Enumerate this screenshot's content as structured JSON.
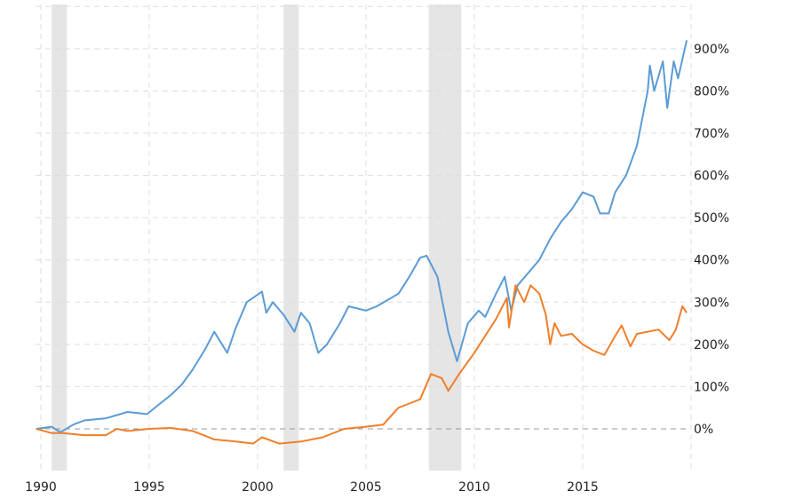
{
  "chart_data": {
    "type": "line",
    "title": "",
    "xlabel": "",
    "ylabel": "",
    "xlim": [
      1989.8,
      2020
    ],
    "ylim": [
      -100,
      1000
    ],
    "x_ticks": [
      1990,
      1995,
      2000,
      2005,
      2010,
      2015
    ],
    "x_tick_labels": [
      "1990",
      "1995",
      "2000",
      "2005",
      "2010",
      "2015"
    ],
    "y_ticks": [
      0,
      100,
      200,
      300,
      400,
      500,
      600,
      700,
      800,
      900
    ],
    "y_tick_labels": [
      "0%",
      "100%",
      "200%",
      "300%",
      "400%",
      "500%",
      "600%",
      "700%",
      "800%",
      "900%"
    ],
    "grid": true,
    "recessions": [
      [
        1990.5,
        1991.2
      ],
      [
        2001.2,
        2001.9
      ],
      [
        2007.9,
        2009.4
      ]
    ],
    "colors": {
      "blue": "#5b9bd5",
      "orange": "#f07f2a",
      "recession": "#e5e5e5",
      "grid": "#dddddd",
      "zero_line": "#999999"
    },
    "series": [
      {
        "color": "#5b9bd5",
        "x": [
          1989.8,
          1990.5,
          1990.9,
          1991.5,
          1992,
          1993,
          1994,
          1994.9,
          1995.5,
          1996,
          1996.5,
          1997,
          1997.6,
          1998,
          1998.6,
          1999,
          1999.5,
          2000.2,
          2000.4,
          2000.7,
          2001.2,
          2001.7,
          2002,
          2002.4,
          2002.8,
          2003.2,
          2003.8,
          2004.2,
          2005,
          2005.5,
          2006,
          2006.5,
          2007,
          2007.5,
          2007.8,
          2008.3,
          2008.8,
          2009.2,
          2009.7,
          2010.2,
          2010.5,
          2011,
          2011.4,
          2011.7,
          2012,
          2012.5,
          2013,
          2013.5,
          2014,
          2014.5,
          2015,
          2015.5,
          2015.8,
          2016.2,
          2016.5,
          2017,
          2017.5,
          2018,
          2018.1,
          2018.3,
          2018.7,
          2018.9,
          2019.2,
          2019.4,
          2019.8
        ],
        "values": [
          0,
          5,
          -8,
          10,
          20,
          25,
          40,
          35,
          60,
          80,
          105,
          140,
          190,
          230,
          180,
          240,
          300,
          325,
          275,
          300,
          270,
          230,
          275,
          250,
          180,
          200,
          250,
          290,
          280,
          290,
          305,
          320,
          360,
          405,
          410,
          360,
          230,
          160,
          250,
          280,
          265,
          320,
          360,
          280,
          340,
          370,
          400,
          450,
          490,
          520,
          560,
          550,
          510,
          510,
          560,
          600,
          670,
          800,
          860,
          800,
          870,
          760,
          870,
          830,
          920
        ]
      },
      {
        "color": "#f07f2a",
        "x": [
          1989.8,
          1990.5,
          1991,
          1992,
          1993,
          1993.5,
          1994,
          1995,
          1996,
          1997,
          1997.5,
          1998,
          1999,
          1999.8,
          2000.2,
          2001,
          2002,
          2003,
          2004,
          2005,
          2005.8,
          2006.5,
          2007,
          2007.5,
          2008,
          2008.5,
          2008.8,
          2009.3,
          2010,
          2010.5,
          2011,
          2011.5,
          2011.6,
          2011.9,
          2012.3,
          2012.6,
          2013,
          2013.3,
          2013.5,
          2013.7,
          2014,
          2014.5,
          2015,
          2015.5,
          2016,
          2016.5,
          2016.8,
          2017.2,
          2017.5,
          2018,
          2018.5,
          2019,
          2019.3,
          2019.6,
          2019.8
        ],
        "values": [
          0,
          -10,
          -10,
          -15,
          -15,
          0,
          -5,
          0,
          2,
          -5,
          -15,
          -25,
          -30,
          -35,
          -20,
          -35,
          -30,
          -20,
          0,
          5,
          10,
          50,
          60,
          70,
          130,
          120,
          90,
          130,
          180,
          220,
          260,
          310,
          240,
          340,
          300,
          340,
          320,
          270,
          200,
          250,
          220,
          225,
          200,
          185,
          175,
          220,
          245,
          195,
          225,
          230,
          235,
          210,
          235,
          290,
          275
        ]
      }
    ]
  }
}
